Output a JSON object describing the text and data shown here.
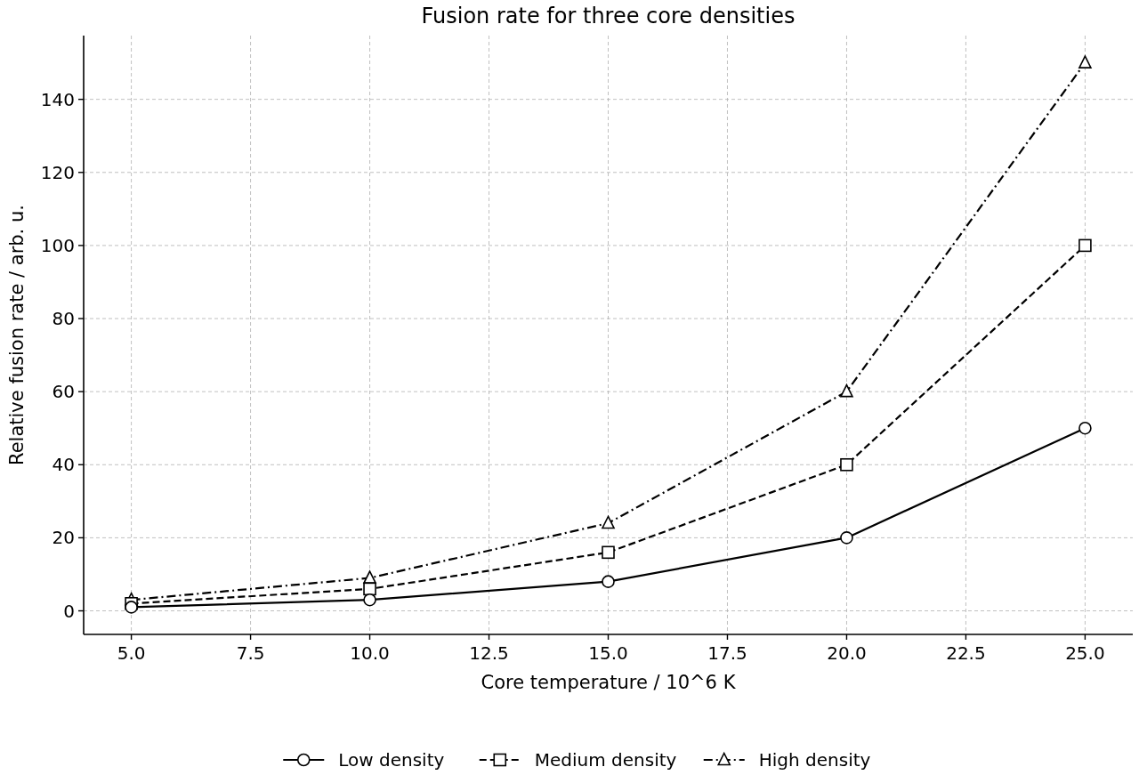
{
  "chart_data": {
    "type": "line",
    "title": "Fusion rate for three core densities",
    "xlabel": "Core temperature / 10^6 K",
    "ylabel": "Relative fusion rate / arb. u.",
    "x": [
      5,
      10,
      15,
      20,
      25
    ],
    "series": [
      {
        "name": "Low density",
        "color": "#000000",
        "values": [
          1,
          3,
          8,
          20,
          50
        ],
        "marker": "circle",
        "line_style": "solid"
      },
      {
        "name": "Medium density",
        "color": "#000000",
        "values": [
          2,
          6,
          16,
          40,
          100
        ],
        "marker": "square",
        "line_style": "dashed"
      },
      {
        "name": "High density",
        "color": "#000000",
        "values": [
          3,
          9,
          24,
          60,
          150
        ],
        "marker": "triangle",
        "line_style": "dashdot"
      }
    ],
    "xlim": [
      4,
      26
    ],
    "xticks": [
      {
        "value": 5,
        "label": "5.0"
      },
      {
        "value": 7.5,
        "label": "7.5"
      },
      {
        "value": 10,
        "label": "10.0"
      },
      {
        "value": 12.5,
        "label": "12.5"
      },
      {
        "value": 15,
        "label": "15.0"
      },
      {
        "value": 17.5,
        "label": "17.5"
      },
      {
        "value": 20,
        "label": "20.0"
      },
      {
        "value": 22.5,
        "label": "22.5"
      },
      {
        "value": 25,
        "label": "25.0"
      }
    ],
    "ylim": [
      -6.45,
      157.45
    ],
    "yticks": [
      0,
      20,
      40,
      60,
      80,
      100,
      120,
      140
    ],
    "grid": true,
    "legend": "bottom"
  }
}
